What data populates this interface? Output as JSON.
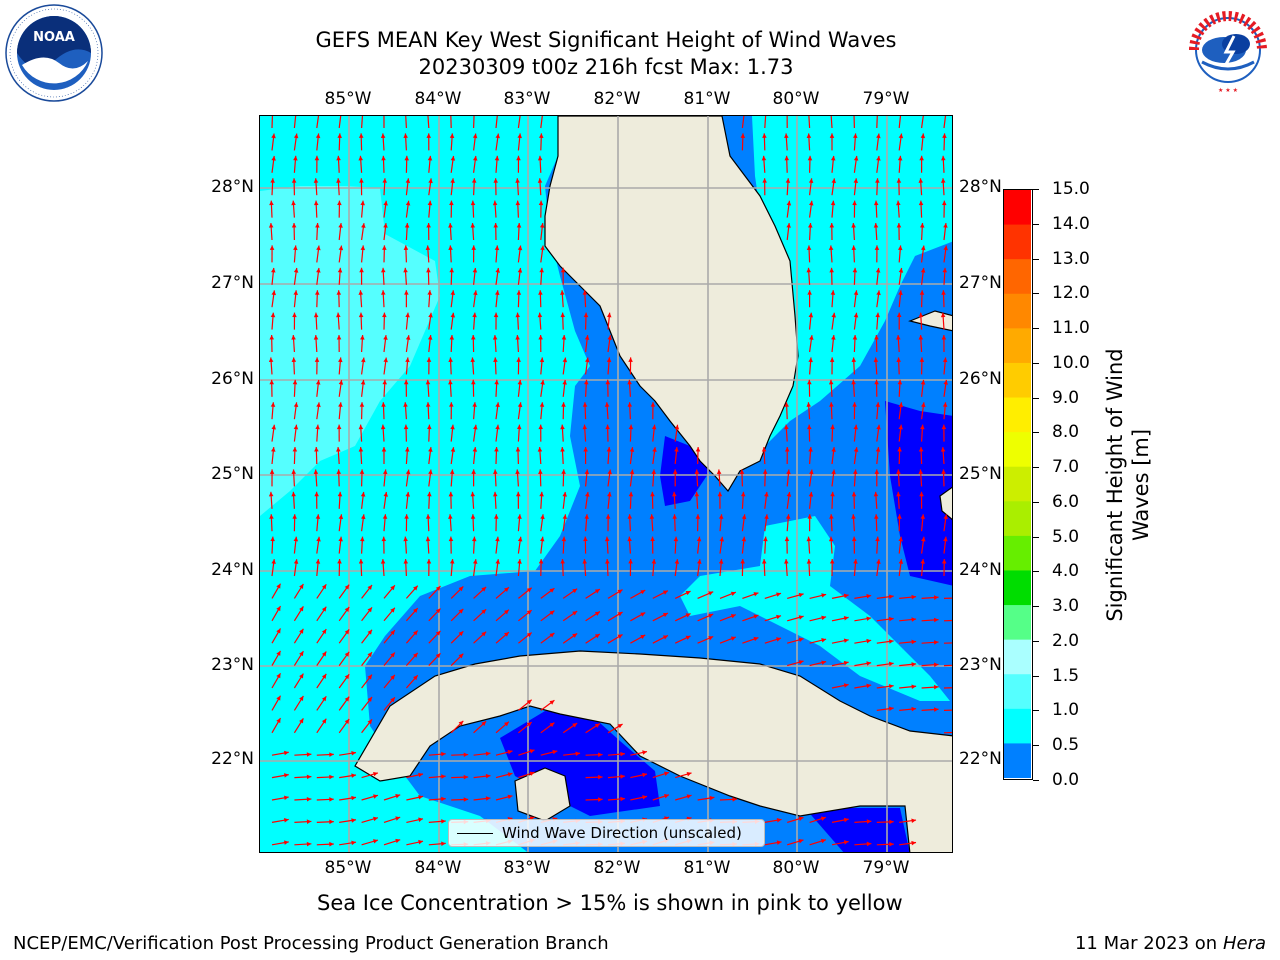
{
  "header": {
    "title_line1": "GEFS MEAN Key West Significant Height of Wind Waves",
    "title_line2": "20230309 t00z 216h fcst   Max: 1.73"
  },
  "logos": {
    "left_text": "NOAA",
    "right_text": "NATIONAL WEATHER SERVICE"
  },
  "map": {
    "lon_ticks": [
      "85°W",
      "84°W",
      "83°W",
      "82°W",
      "81°W",
      "80°W",
      "79°W"
    ],
    "lat_ticks": [
      "28°N",
      "27°N",
      "26°N",
      "25°N",
      "24°N",
      "23°N",
      "22°N"
    ],
    "colors": {
      "land": "#eeecdc",
      "deep_blue": "#0000ff",
      "mid_blue": "#0080ff",
      "cyan": "#00ffff",
      "light_cyan": "#55ffff",
      "arrow": "#ff0000"
    },
    "legend_label": "Wind Wave Direction (unscaled)"
  },
  "colorbar": {
    "ticks": [
      "15.0",
      "14.0",
      "13.0",
      "12.0",
      "11.0",
      "10.0",
      "9.0",
      "8.0",
      "7.0",
      "6.0",
      "5.0",
      "4.0",
      "3.0",
      "2.0",
      "1.5",
      "1.0",
      "0.5",
      "0.0"
    ],
    "colors": [
      "#ff0000",
      "#ff3300",
      "#ff6600",
      "#ff8800",
      "#ffaa00",
      "#ffcc00",
      "#ffee00",
      "#eeff00",
      "#ccee00",
      "#aaee00",
      "#66ee00",
      "#00dd00",
      "#55ff88",
      "#aaffff",
      "#55ffff",
      "#00ffff",
      "#0080ff",
      "#0000ff"
    ],
    "label_line1": "Significant Height of Wind",
    "label_line2": "Waves [m]"
  },
  "footer": {
    "note": "Sea Ice Concentration > 15% is shown in pink to yellow",
    "credit": "NCEP/EMC/Verification Post Processing Product Generation Branch",
    "date": "11 Mar 2023 on",
    "host": "Hera"
  }
}
